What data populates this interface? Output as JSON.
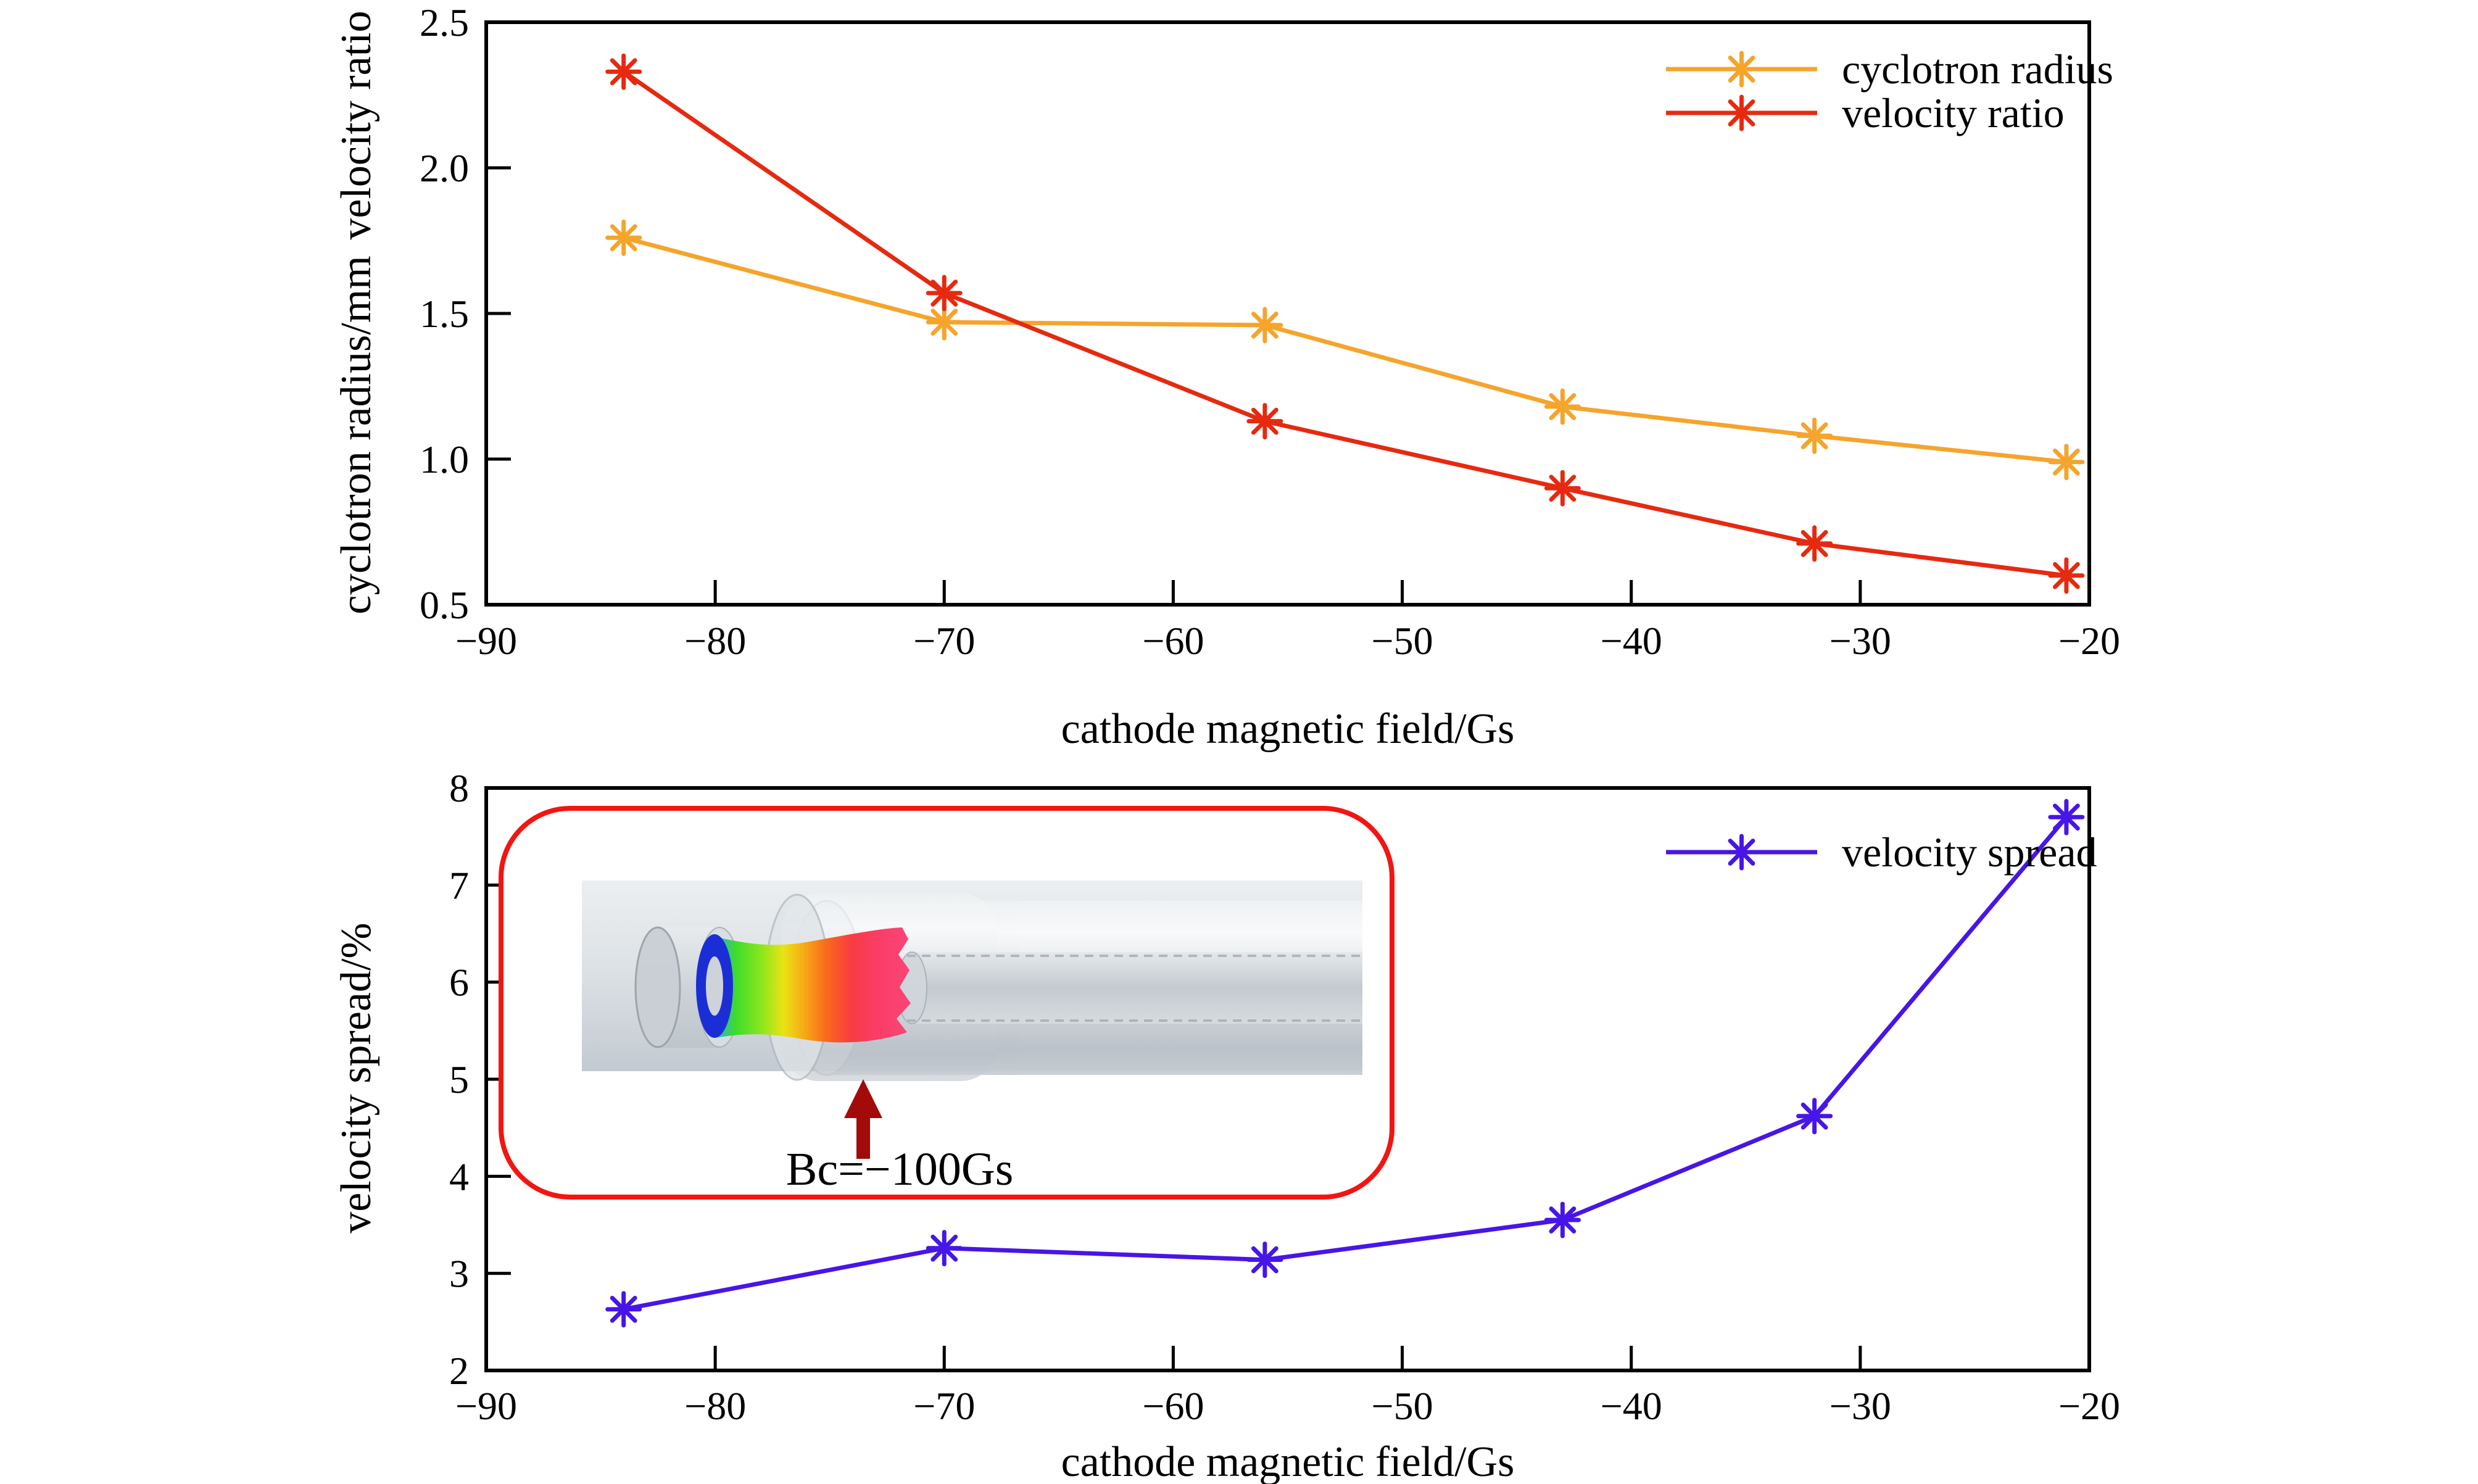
{
  "figure": {
    "background": "#ffffff",
    "axis_color": "#000000",
    "inset": {
      "label": "Bc=−100Gs",
      "border_color": "#f21511",
      "arrow_color": "#a30a0a"
    }
  },
  "chart_data": [
    {
      "type": "line",
      "title": "",
      "xlabel": "cathode magnetic field/Gs",
      "ylabel_upper": "velocity ratio",
      "ylabel_lower": "cyclotron radius/mm",
      "xlim": [
        -90,
        -20
      ],
      "ylim": [
        0.5,
        2.5
      ],
      "xticks": [
        -90,
        -80,
        -70,
        -60,
        -50,
        -40,
        -30,
        -20
      ],
      "xtick_labels": [
        "−90",
        "−80",
        "−70",
        "−60",
        "−50",
        "−40",
        "−30",
        "−20"
      ],
      "yticks": [
        0.5,
        1.0,
        1.5,
        2.0,
        2.5
      ],
      "ytick_labels": [
        "0.5",
        "1.0",
        "1.5",
        "2.0",
        "2.5"
      ],
      "x": [
        -84,
        -70,
        -56,
        -43,
        -32,
        -21
      ],
      "series": [
        {
          "name": "cyclotron radius",
          "color": "#f5a42c",
          "marker": "asterisk",
          "values": [
            1.76,
            1.47,
            1.46,
            1.18,
            1.08,
            0.99
          ]
        },
        {
          "name": "velocity ratio",
          "color": "#e52a10",
          "marker": "asterisk",
          "values": [
            2.33,
            1.57,
            1.13,
            0.9,
            0.71,
            0.6
          ]
        }
      ],
      "legend_position": "top-right",
      "grid": false
    },
    {
      "type": "line",
      "title": "",
      "xlabel": "cathode magnetic field/Gs",
      "ylabel": "velocity spread/%",
      "xlim": [
        -90,
        -20
      ],
      "ylim": [
        2,
        8
      ],
      "xticks": [
        -90,
        -80,
        -70,
        -60,
        -50,
        -40,
        -30,
        -20
      ],
      "xtick_labels": [
        "−90",
        "−80",
        "−70",
        "−60",
        "−50",
        "−40",
        "−30",
        "−20"
      ],
      "yticks": [
        2,
        3,
        4,
        5,
        6,
        7,
        8
      ],
      "ytick_labels": [
        "2",
        "3",
        "4",
        "5",
        "6",
        "7",
        "8"
      ],
      "x": [
        -84,
        -70,
        -56,
        -43,
        -32,
        -21
      ],
      "series": [
        {
          "name": "velocity spread",
          "color": "#4716e6",
          "marker": "asterisk",
          "values": [
            2.63,
            3.26,
            3.14,
            3.55,
            4.62,
            7.7
          ]
        }
      ],
      "legend_position": "top-right",
      "grid": false,
      "annotation": "Bc=−100Gs"
    }
  ]
}
